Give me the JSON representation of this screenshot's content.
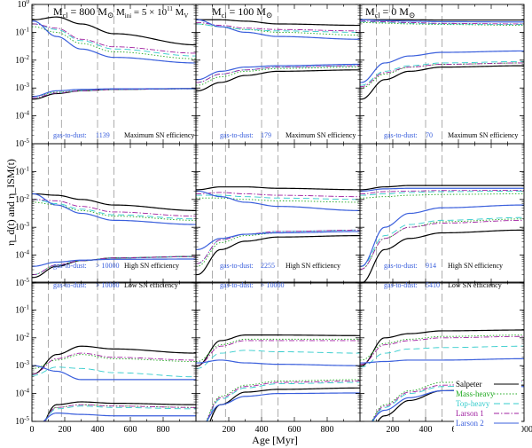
{
  "chart_data": {
    "type": "line",
    "xlabel": "Age [Myr]",
    "ylabel": "η_d(t) and η_ISM(t)",
    "xlim": [
      0,
      1000
    ],
    "ylim_log10": [
      -5,
      0
    ],
    "xticks": [
      "0",
      "200",
      "400",
      "600",
      "800",
      "200",
      "400",
      "600",
      "800",
      "200",
      "400",
      "600",
      "800",
      "1000"
    ],
    "yticks_top": [
      "10^0",
      "10^-1",
      "10^-2",
      "10^-3",
      "10^-4",
      "10^-5"
    ],
    "yticks": [
      "10^-1",
      "10^-2",
      "10^-3",
      "10^-4",
      "10^-5"
    ],
    "dashed_vlines_myr": [
      100,
      180,
      400,
      500
    ],
    "annotations": {
      "col_titles": [
        "M_cl = 800 M_⊙",
        "M_cl = 100 M_⊙",
        "M_cl = 0 M_⊙"
      ],
      "col_titles_parts": [
        {
          "main": "M",
          "sub": "cl",
          "rest": " = 800 M",
          "sym": "⊙"
        },
        {
          "main": "M",
          "sub": "cl",
          "rest": " = 100 M",
          "sym": "⊙"
        },
        {
          "main": "M",
          "sub": "cl",
          "rest": " = 0 M",
          "sym": "⊙"
        }
      ],
      "minit": {
        "text": "M_ini = 5 × 10^11 M_V",
        "main": "M",
        "sub": "ini",
        "mid": " = 5 × 10",
        "sup": "11",
        "tail": " M",
        "sub2": "V"
      },
      "rows": [
        {
          "gas_label": "gas-to-dust:",
          "values": [
            "1139",
            "179",
            "70"
          ],
          "eff_label": "Maximum SN efficiency"
        },
        {
          "gas_label": "gas-to-dust:",
          "values": [
            "> 10000",
            "2255",
            "914"
          ],
          "eff_label": "High SN efficiency"
        },
        {
          "gas_label": "gas-to-dust:",
          "values": [
            "> 10000",
            "> 10000",
            "5410"
          ],
          "eff_label": "Low SN efficiency"
        }
      ]
    },
    "legend_position": "bottom-right",
    "series": [
      {
        "name": "Salpeter",
        "color": "#000000",
        "dash": ""
      },
      {
        "name": "Mass-heavy",
        "color": "#22aa22",
        "dash": "1.5,2"
      },
      {
        "name": "Top-heavy",
        "color": "#33cccc",
        "dash": "7,4"
      },
      {
        "name": "Larson 1",
        "color": "#a020a0",
        "dash": "6,2,1.5,2"
      },
      {
        "name": "Larson 2",
        "color": "#3a5fdc",
        "dash": ""
      }
    ],
    "panels": [
      {
        "row": 0,
        "col": 0,
        "ism": [
          [
            -0.55,
            -0.45,
            -0.7,
            -1.05,
            -1.45
          ],
          [
            -0.8,
            -1.0,
            -1.4,
            -1.7,
            -1.95
          ],
          [
            -0.7,
            -0.9,
            -1.3,
            -1.6,
            -1.85
          ],
          [
            -0.7,
            -0.85,
            -1.25,
            -1.52,
            -1.75
          ],
          [
            -0.6,
            -1.15,
            -1.6,
            -1.9,
            -2.1
          ]
        ],
        "dust": [
          [
            -3.4,
            -3.2,
            -3.1,
            -3.05,
            -3.02
          ],
          [
            -3.3,
            -3.15,
            -3.1,
            -3.05,
            -3.03
          ],
          [
            -3.35,
            -3.18,
            -3.1,
            -3.05,
            -3.03
          ],
          [
            -3.35,
            -3.18,
            -3.1,
            -3.05,
            -3.03
          ],
          [
            -3.3,
            -3.1,
            -3.05,
            -3.03,
            -3.02
          ]
        ]
      },
      {
        "row": 0,
        "col": 1,
        "ism": [
          [
            -0.55,
            -0.55,
            -0.6,
            -0.7,
            -0.75
          ],
          [
            -0.7,
            -0.8,
            -0.9,
            -1.0,
            -1.1
          ],
          [
            -0.7,
            -0.8,
            -0.9,
            -0.95,
            -1.0
          ],
          [
            -0.65,
            -0.75,
            -0.85,
            -0.9,
            -0.95
          ],
          [
            -0.55,
            -0.8,
            -1.0,
            -1.15,
            -1.25
          ]
        ],
        "dust": [
          [
            -3.1,
            -2.8,
            -2.55,
            -2.4,
            -2.35
          ],
          [
            -2.9,
            -2.6,
            -2.4,
            -2.3,
            -2.25
          ],
          [
            -2.8,
            -2.5,
            -2.35,
            -2.25,
            -2.2
          ],
          [
            -2.8,
            -2.5,
            -2.35,
            -2.25,
            -2.2
          ],
          [
            -2.7,
            -2.4,
            -2.25,
            -2.2,
            -2.15
          ]
        ]
      },
      {
        "row": 0,
        "col": 2,
        "ism": [
          [
            -0.55,
            -0.55,
            -0.55,
            -0.56,
            -0.56
          ],
          [
            -0.65,
            -0.67,
            -0.7,
            -0.72,
            -0.75
          ],
          [
            -0.62,
            -0.64,
            -0.67,
            -0.7,
            -0.72
          ],
          [
            -0.6,
            -0.62,
            -0.65,
            -0.68,
            -0.7
          ],
          [
            -0.55,
            -0.58,
            -0.6,
            -0.62,
            -0.63
          ]
        ],
        "dust": [
          [
            -3.4,
            -2.7,
            -2.4,
            -2.25,
            -2.2
          ],
          [
            -3.0,
            -2.5,
            -2.25,
            -2.15,
            -2.1
          ],
          [
            -2.9,
            -2.4,
            -2.2,
            -2.1,
            -2.05
          ],
          [
            -2.95,
            -2.45,
            -2.25,
            -2.15,
            -2.1
          ],
          [
            -2.8,
            -2.1,
            -1.85,
            -1.72,
            -1.67
          ]
        ]
      },
      {
        "row": 1,
        "col": 0,
        "ism": [
          [
            -1.8,
            -1.85,
            -2.0,
            -2.2,
            -2.4
          ],
          [
            -2.1,
            -2.2,
            -2.4,
            -2.6,
            -2.75
          ],
          [
            -2.0,
            -2.15,
            -2.35,
            -2.55,
            -2.7
          ],
          [
            -2.0,
            -2.05,
            -2.25,
            -2.45,
            -2.6
          ],
          [
            -1.8,
            -2.2,
            -2.5,
            -2.75,
            -2.9
          ]
        ],
        "dust": [
          [
            -4.8,
            -4.4,
            -4.2,
            -4.1,
            -4.05
          ],
          [
            -4.7,
            -4.35,
            -4.2,
            -4.1,
            -4.05
          ],
          [
            -4.7,
            -4.35,
            -4.2,
            -4.1,
            -4.05
          ],
          [
            -4.7,
            -4.35,
            -4.2,
            -4.1,
            -4.05
          ],
          [
            -4.4,
            -4.25,
            -4.18,
            -4.15,
            -4.14
          ]
        ]
      },
      {
        "row": 1,
        "col": 1,
        "ism": [
          [
            -1.65,
            -1.55,
            -1.55,
            -1.6,
            -1.65
          ],
          [
            -1.95,
            -1.95,
            -2.0,
            -2.05,
            -2.1
          ],
          [
            -1.85,
            -1.85,
            -1.9,
            -1.95,
            -2.0
          ],
          [
            -1.8,
            -1.75,
            -1.8,
            -1.85,
            -1.9
          ],
          [
            -1.7,
            -1.9,
            -2.1,
            -2.25,
            -2.4
          ]
        ],
        "dust": [
          [
            -4.7,
            -3.8,
            -3.5,
            -3.35,
            -3.3
          ],
          [
            -4.4,
            -3.55,
            -3.3,
            -3.2,
            -3.15
          ],
          [
            -4.3,
            -3.45,
            -3.25,
            -3.15,
            -3.1
          ],
          [
            -4.3,
            -3.45,
            -3.25,
            -3.15,
            -3.1
          ],
          [
            -3.8,
            -3.4,
            -3.25,
            -3.2,
            -3.15
          ]
        ]
      },
      {
        "row": 1,
        "col": 2,
        "ism": [
          [
            -1.65,
            -1.55,
            -1.5,
            -1.5,
            -1.5
          ],
          [
            -1.95,
            -1.9,
            -1.85,
            -1.82,
            -1.8
          ],
          [
            -1.85,
            -1.8,
            -1.75,
            -1.72,
            -1.7
          ],
          [
            -1.8,
            -1.72,
            -1.7,
            -1.68,
            -1.67
          ],
          [
            -1.7,
            -1.62,
            -1.6,
            -1.6,
            -1.6
          ]
        ],
        "dust": [
          [
            -5.0,
            -3.8,
            -3.4,
            -3.2,
            -3.1
          ],
          [
            -4.5,
            -3.4,
            -3.0,
            -2.8,
            -2.7
          ],
          [
            -4.4,
            -3.3,
            -2.9,
            -2.75,
            -2.65
          ],
          [
            -4.5,
            -3.4,
            -3.0,
            -2.85,
            -2.75
          ],
          [
            -4.4,
            -3.0,
            -2.5,
            -2.3,
            -2.2
          ]
        ]
      },
      {
        "row": 2,
        "col": 0,
        "ism": [
          [
            -3.3,
            -2.6,
            -2.3,
            -2.4,
            -2.55
          ],
          [
            -3.1,
            -2.8,
            -2.6,
            -2.75,
            -2.85
          ],
          [
            -3.35,
            -3.05,
            -3.1,
            -3.25,
            -3.4
          ],
          [
            -3.3,
            -2.75,
            -2.55,
            -2.7,
            -2.8
          ],
          [
            -3.0,
            -3.2,
            -3.5,
            -3.5,
            -3.5
          ]
        ],
        "dust": [
          [
            -5.6,
            -4.4,
            -4.3,
            -4.35,
            -4.4
          ],
          [
            -5.4,
            -4.5,
            -4.4,
            -4.45,
            -4.5
          ],
          [
            -5.5,
            -4.55,
            -4.45,
            -4.5,
            -4.55
          ],
          [
            -5.5,
            -4.5,
            -4.4,
            -4.45,
            -4.5
          ],
          [
            -5.2,
            -4.7,
            -4.75,
            -4.8,
            -4.8
          ]
        ]
      },
      {
        "row": 2,
        "col": 1,
        "ism": [
          [
            -3.0,
            -2.1,
            -1.9,
            -1.9,
            -1.92
          ],
          [
            -2.85,
            -2.25,
            -2.05,
            -2.05,
            -2.05
          ],
          [
            -3.1,
            -2.55,
            -2.45,
            -2.5,
            -2.55
          ],
          [
            -3.0,
            -2.3,
            -2.1,
            -2.1,
            -2.1
          ],
          [
            -2.9,
            -2.8,
            -2.9,
            -2.95,
            -3.0
          ]
        ],
        "dust": [
          [
            -5.8,
            -4.4,
            -3.95,
            -3.85,
            -3.8
          ],
          [
            -5.4,
            -4.1,
            -3.7,
            -3.55,
            -3.5
          ],
          [
            -5.5,
            -4.2,
            -3.8,
            -3.65,
            -3.6
          ],
          [
            -5.45,
            -4.15,
            -3.75,
            -3.6,
            -3.55
          ],
          [
            -5.3,
            -4.4,
            -4.1,
            -4.0,
            -3.98
          ]
        ]
      },
      {
        "row": 2,
        "col": 2,
        "ism": [
          [
            -3.0,
            -2.0,
            -1.85,
            -1.75,
            -1.72
          ],
          [
            -2.8,
            -2.2,
            -2.05,
            -1.95,
            -1.9
          ],
          [
            -3.05,
            -2.55,
            -2.4,
            -2.35,
            -2.3
          ],
          [
            -2.95,
            -2.25,
            -2.1,
            -2.0,
            -1.95
          ],
          [
            -2.9,
            -2.85,
            -2.8,
            -2.8,
            -2.75
          ]
        ],
        "dust": [
          [
            -5.8,
            -4.8,
            -4.25,
            -3.9,
            -3.7
          ],
          [
            -5.4,
            -4.4,
            -3.9,
            -3.6,
            -3.5
          ],
          [
            -5.5,
            -4.5,
            -4.0,
            -3.75,
            -3.6
          ],
          [
            -5.45,
            -4.45,
            -3.95,
            -3.7,
            -3.55
          ],
          [
            -5.3,
            -4.6,
            -4.15,
            -3.9,
            -3.75
          ]
        ]
      }
    ]
  }
}
